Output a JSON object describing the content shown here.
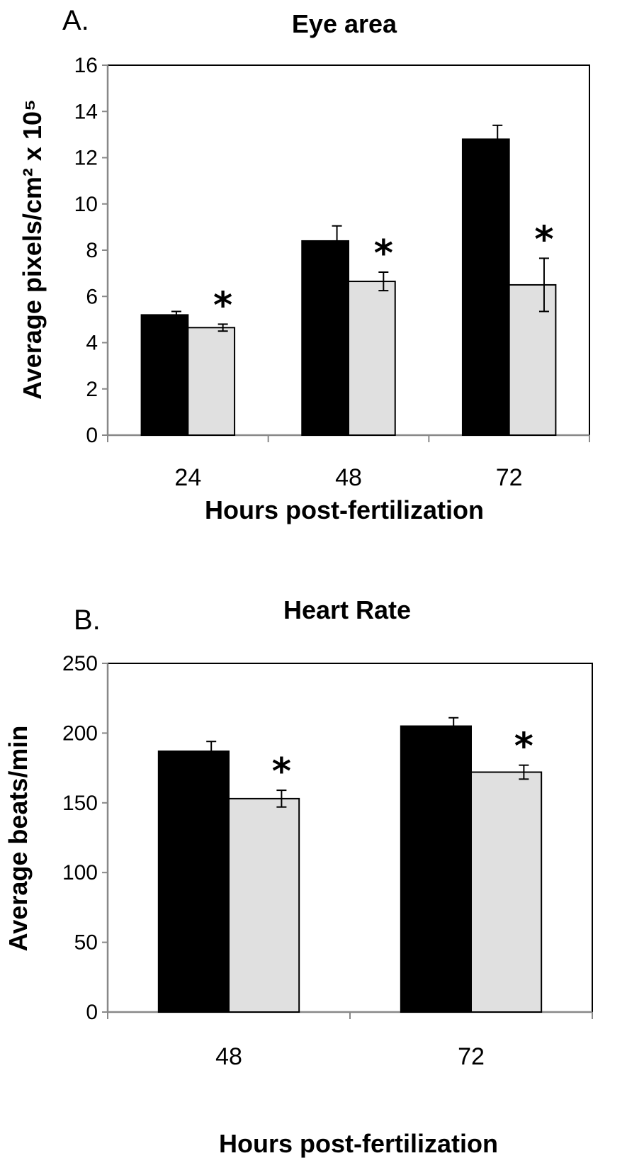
{
  "chart_data": [
    {
      "panel_label": "A.",
      "type": "bar",
      "title": "Eye area",
      "xlabel": "Hours post-fertilization",
      "ylabel": "Average pixels/cm² x 10⁵",
      "ylim": [
        0,
        16
      ],
      "yticks": [
        "0",
        "2",
        "4",
        "6",
        "8",
        "10",
        "12",
        "14",
        "16"
      ],
      "categories": [
        "24",
        "48",
        "72"
      ],
      "series": [
        {
          "color": "#000000",
          "values": [
            5.2,
            8.4,
            12.8
          ],
          "errors": [
            0.15,
            0.65,
            0.6
          ]
        },
        {
          "color": "#e0e0e0",
          "values": [
            4.65,
            6.65,
            6.5
          ],
          "errors": [
            0.15,
            0.4,
            1.15
          ]
        }
      ],
      "annotations": [
        "*",
        "*",
        "*"
      ],
      "grid": false
    },
    {
      "panel_label": "B.",
      "type": "bar",
      "title": "Heart Rate",
      "xlabel": "Hours post-fertilization",
      "ylabel": "Average beats/min",
      "ylim": [
        0,
        250
      ],
      "yticks": [
        "0",
        "50",
        "100",
        "150",
        "200",
        "250"
      ],
      "categories": [
        "48",
        "72"
      ],
      "series": [
        {
          "color": "#000000",
          "values": [
            187,
            205
          ],
          "errors": [
            7,
            6
          ]
        },
        {
          "color": "#e0e0e0",
          "values": [
            153,
            172
          ],
          "errors": [
            6,
            5
          ]
        }
      ],
      "annotations": [
        "*",
        "*"
      ],
      "grid": false
    }
  ]
}
